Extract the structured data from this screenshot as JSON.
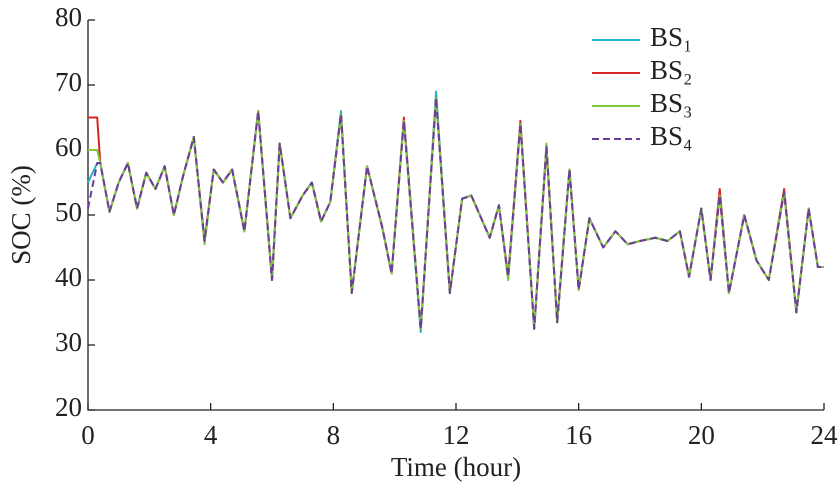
{
  "chart_data": {
    "type": "line",
    "xlabel": "Time (hour)",
    "ylabel": "SOC (%)",
    "xlim": [
      0,
      24
    ],
    "xticks": [
      0,
      4,
      8,
      12,
      16,
      20,
      24
    ],
    "ylim": [
      20,
      80
    ],
    "yticks": [
      20,
      30,
      40,
      50,
      60,
      70,
      80
    ],
    "legend": "upper right",
    "x": [
      0,
      0.3,
      0.4,
      0.7,
      1.0,
      1.3,
      1.6,
      1.9,
      2.2,
      2.5,
      2.8,
      3.1,
      3.45,
      3.8,
      4.1,
      4.4,
      4.7,
      5.1,
      5.55,
      6.0,
      6.25,
      6.6,
      7.0,
      7.3,
      7.6,
      7.9,
      8.25,
      8.6,
      9.1,
      9.6,
      9.9,
      10.3,
      10.85,
      11.35,
      11.8,
      12.2,
      12.5,
      13.1,
      13.4,
      13.7,
      14.1,
      14.55,
      14.95,
      15.3,
      15.7,
      16.0,
      16.35,
      16.8,
      17.2,
      17.6,
      18.0,
      18.5,
      18.9,
      19.3,
      19.6,
      20.0,
      20.3,
      20.6,
      20.9,
      21.4,
      21.8,
      22.2,
      22.7,
      23.1,
      23.5,
      23.8,
      24.0
    ],
    "series": [
      {
        "name": "BS₁",
        "color": "#1fb5c8",
        "style": "solid",
        "values": [
          55,
          58,
          58,
          50.5,
          55,
          58,
          51,
          56.5,
          54,
          57.5,
          50,
          56,
          62,
          46,
          57,
          55,
          57,
          47.5,
          66,
          40,
          61,
          49.5,
          53,
          55,
          49,
          52,
          66,
          38,
          57.5,
          48,
          41,
          64.5,
          32,
          69,
          38,
          52.5,
          53,
          46.5,
          51.5,
          40,
          64,
          32.5,
          60.5,
          33.5,
          57,
          38.5,
          49.5,
          45,
          47.5,
          45.5,
          46,
          46.5,
          46,
          47.5,
          40.5,
          51,
          40,
          53,
          38,
          50,
          43,
          40,
          53.5,
          35,
          51,
          42,
          42
        ]
      },
      {
        "name": "BS₂",
        "color": "#d62728",
        "style": "solid",
        "values": [
          65,
          65,
          58,
          50.5,
          55,
          58,
          51,
          56.5,
          54,
          57.5,
          50,
          56,
          62,
          46,
          57,
          55,
          57,
          47.5,
          66,
          40,
          61,
          49.5,
          53,
          55,
          49,
          52,
          65.5,
          38,
          57.5,
          48,
          41,
          65,
          32.5,
          68,
          38,
          52.5,
          53,
          46.5,
          51.5,
          40.5,
          64.5,
          32.5,
          60.5,
          33.5,
          57,
          38.5,
          49.5,
          45,
          47.5,
          45.5,
          46,
          46.5,
          46,
          47.5,
          40.5,
          51,
          40,
          54,
          38,
          50,
          43,
          40,
          54,
          35,
          51,
          42,
          42
        ]
      },
      {
        "name": "BS₃",
        "color": "#7ec83a",
        "style": "solid",
        "values": [
          60,
          60,
          58,
          50.5,
          55,
          58,
          51,
          56.5,
          54,
          57.5,
          50,
          56,
          62,
          45.5,
          57,
          55,
          57,
          47.5,
          66,
          40,
          61,
          49.5,
          53,
          55,
          49,
          52,
          65.5,
          38,
          57.5,
          48,
          41,
          64.5,
          32.5,
          68,
          38,
          52.5,
          53,
          46.5,
          51.5,
          40,
          64,
          32.5,
          61,
          33.5,
          57,
          38.5,
          49.5,
          45,
          47.5,
          45.5,
          46,
          46.5,
          46,
          47.5,
          40.5,
          51,
          40,
          53,
          38,
          50,
          43,
          40,
          53.5,
          35,
          51,
          42,
          42
        ]
      },
      {
        "name": "BS₄",
        "color": "#6a3d9a",
        "style": "dashed",
        "values": [
          51,
          58,
          58,
          50.5,
          55,
          58,
          51,
          56.5,
          54,
          57.5,
          50,
          56,
          62,
          46,
          57,
          55,
          57,
          47.5,
          66,
          40,
          61,
          49.5,
          53,
          55,
          49,
          52,
          65.5,
          38,
          57.5,
          48,
          41,
          64.5,
          32.5,
          68,
          38,
          52.5,
          53,
          46.5,
          51.5,
          40.5,
          64,
          32.5,
          60.5,
          33.5,
          57,
          38.5,
          49.5,
          45,
          47.5,
          45.5,
          46,
          46.5,
          46,
          47.5,
          40.5,
          51,
          40,
          53,
          38,
          50,
          43,
          40,
          53.5,
          35,
          51,
          42,
          42
        ]
      }
    ]
  }
}
